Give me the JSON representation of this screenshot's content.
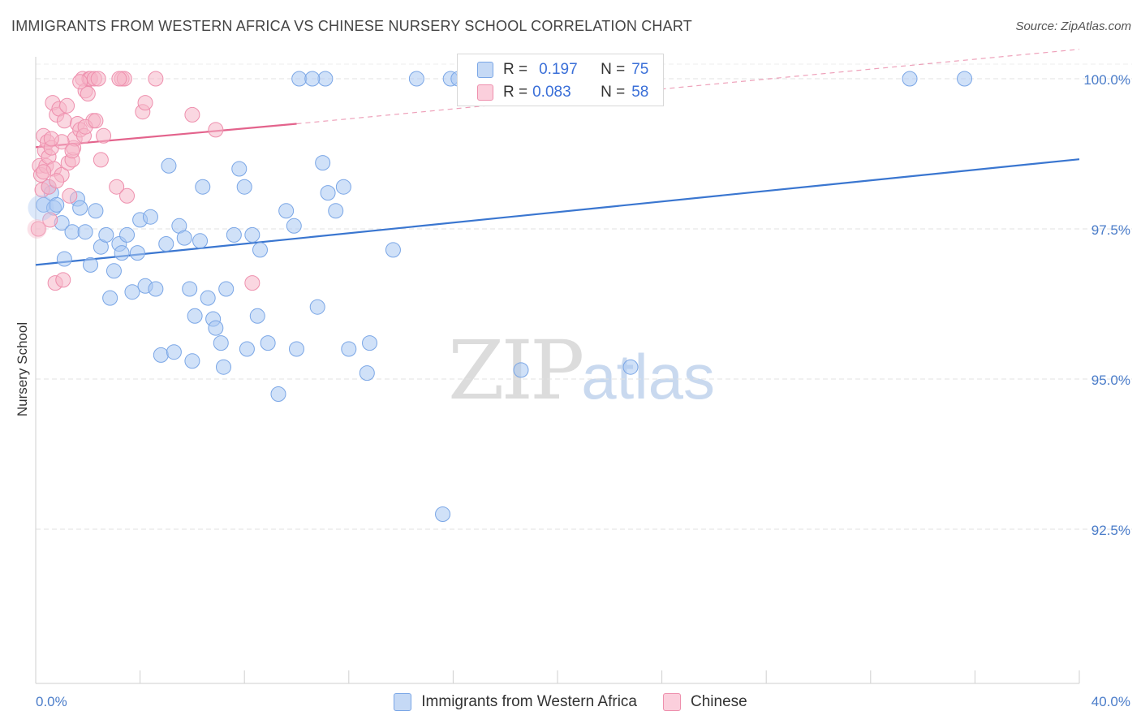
{
  "title": "IMMIGRANTS FROM WESTERN AFRICA VS CHINESE NURSERY SCHOOL CORRELATION CHART",
  "source": "Source: ZipAtlas.com",
  "watermark": {
    "zip": "ZIP",
    "atlas": "atlas"
  },
  "legend": [
    {
      "r_label": "R =",
      "r_value": "0.197",
      "n_label": "N =",
      "n_value": "75",
      "color": "#a9c8f2"
    },
    {
      "r_label": "R =",
      "r_value": "0.083",
      "n_label": "N =",
      "n_value": "58",
      "color": "#f6b6c9"
    }
  ],
  "chart_data": {
    "type": "scatter",
    "title": "IMMIGRANTS FROM WESTERN AFRICA VS CHINESE NURSERY SCHOOL CORRELATION CHART",
    "xlabel": "",
    "ylabel": "Nursery School",
    "xlim": [
      0,
      40
    ],
    "ylim": [
      90.0,
      100.45
    ],
    "x_tick_labels": [
      "0.0%",
      "40.0%"
    ],
    "y_ticks": [
      92.5,
      95.0,
      97.5,
      100.0
    ],
    "y_tick_labels": [
      "92.5%",
      "95.0%",
      "97.5%",
      "100.0%"
    ],
    "grid": true,
    "series": [
      {
        "name": "Immigrants from Western Africa",
        "color": "#a9c8f2",
        "stroke": "#7aa6e6",
        "trend": {
          "x": [
            0,
            40
          ],
          "y": [
            96.9,
            98.66
          ],
          "color": "#3a76d0"
        },
        "points": [
          [
            0.3,
            97.9
          ],
          [
            0.5,
            98.2
          ],
          [
            0.6,
            98.1
          ],
          [
            0.7,
            97.85
          ],
          [
            0.8,
            97.9
          ],
          [
            1.0,
            97.6
          ],
          [
            1.1,
            97.0
          ],
          [
            1.4,
            97.45
          ],
          [
            1.6,
            98.0
          ],
          [
            1.7,
            97.85
          ],
          [
            1.9,
            97.45
          ],
          [
            2.1,
            96.9
          ],
          [
            2.3,
            97.8
          ],
          [
            2.5,
            97.2
          ],
          [
            2.7,
            97.4
          ],
          [
            2.85,
            96.35
          ],
          [
            3.0,
            96.8
          ],
          [
            3.2,
            97.25
          ],
          [
            3.3,
            97.1
          ],
          [
            3.5,
            97.4
          ],
          [
            3.7,
            96.45
          ],
          [
            3.9,
            97.1
          ],
          [
            4.0,
            97.65
          ],
          [
            4.2,
            96.55
          ],
          [
            4.4,
            97.7
          ],
          [
            4.6,
            96.5
          ],
          [
            4.8,
            95.4
          ],
          [
            5.0,
            97.25
          ],
          [
            5.1,
            98.55
          ],
          [
            5.3,
            95.45
          ],
          [
            5.5,
            97.55
          ],
          [
            5.7,
            97.35
          ],
          [
            5.9,
            96.5
          ],
          [
            6.1,
            96.05
          ],
          [
            6.3,
            97.3
          ],
          [
            6.4,
            98.2
          ],
          [
            6.6,
            96.35
          ],
          [
            6.8,
            96.0
          ],
          [
            6.9,
            95.85
          ],
          [
            7.1,
            95.6
          ],
          [
            7.3,
            96.5
          ],
          [
            7.6,
            97.4
          ],
          [
            7.8,
            98.5
          ],
          [
            8.0,
            98.2
          ],
          [
            8.1,
            95.5
          ],
          [
            8.3,
            97.4
          ],
          [
            8.5,
            96.05
          ],
          [
            8.6,
            97.15
          ],
          [
            8.9,
            95.6
          ],
          [
            9.3,
            94.75
          ],
          [
            9.6,
            97.8
          ],
          [
            9.9,
            97.55
          ],
          [
            10.1,
            100.0
          ],
          [
            10.8,
            96.2
          ],
          [
            11.0,
            98.6
          ],
          [
            11.2,
            98.1
          ],
          [
            11.5,
            97.8
          ],
          [
            11.8,
            98.2
          ],
          [
            12.0,
            95.5
          ],
          [
            12.7,
            95.1
          ],
          [
            12.8,
            95.6
          ],
          [
            13.7,
            97.15
          ],
          [
            14.6,
            100.0
          ],
          [
            15.6,
            92.75
          ],
          [
            15.9,
            100.0
          ],
          [
            18.6,
            95.15
          ],
          [
            22.8,
            95.2
          ],
          [
            33.5,
            100.0
          ],
          [
            35.6,
            100.0
          ],
          [
            11.1,
            100.0
          ],
          [
            10.6,
            100.0
          ],
          [
            16.2,
            100.0
          ],
          [
            7.2,
            95.2
          ],
          [
            6.0,
            95.3
          ],
          [
            10.0,
            95.5
          ]
        ]
      },
      {
        "name": "Chinese",
        "color": "#f6b6c9",
        "stroke": "#ee8fad",
        "trend": {
          "x": [
            0,
            10
          ],
          "y": [
            98.86,
            99.25
          ],
          "color": "#e3638c",
          "dash_to": [
            40,
            100.49
          ]
        },
        "points": [
          [
            0.1,
            97.5
          ],
          [
            0.15,
            98.55
          ],
          [
            0.2,
            98.4
          ],
          [
            0.25,
            98.15
          ],
          [
            0.3,
            99.05
          ],
          [
            0.35,
            98.8
          ],
          [
            0.4,
            98.55
          ],
          [
            0.45,
            98.95
          ],
          [
            0.5,
            98.7
          ],
          [
            0.55,
            97.65
          ],
          [
            0.6,
            98.85
          ],
          [
            0.65,
            99.6
          ],
          [
            0.7,
            98.5
          ],
          [
            0.75,
            96.6
          ],
          [
            0.8,
            99.4
          ],
          [
            0.9,
            99.5
          ],
          [
            1.0,
            98.4
          ],
          [
            1.05,
            96.65
          ],
          [
            1.1,
            99.3
          ],
          [
            1.2,
            99.55
          ],
          [
            1.25,
            98.6
          ],
          [
            1.3,
            98.05
          ],
          [
            1.4,
            98.65
          ],
          [
            1.45,
            98.85
          ],
          [
            1.5,
            99.0
          ],
          [
            1.6,
            99.25
          ],
          [
            1.7,
            99.15
          ],
          [
            1.8,
            100.0
          ],
          [
            1.85,
            99.05
          ],
          [
            1.9,
            99.8
          ],
          [
            2.0,
            99.75
          ],
          [
            2.05,
            100.0
          ],
          [
            2.1,
            100.0
          ],
          [
            2.2,
            99.3
          ],
          [
            2.25,
            100.0
          ],
          [
            2.4,
            100.0
          ],
          [
            2.5,
            98.65
          ],
          [
            2.6,
            99.05
          ],
          [
            3.1,
            98.2
          ],
          [
            3.3,
            100.0
          ],
          [
            3.4,
            100.0
          ],
          [
            3.5,
            98.05
          ],
          [
            4.1,
            99.45
          ],
          [
            4.2,
            99.6
          ],
          [
            4.6,
            100.0
          ],
          [
            6.0,
            99.4
          ],
          [
            6.9,
            99.15
          ],
          [
            8.3,
            96.6
          ],
          [
            0.5,
            98.2
          ],
          [
            1.0,
            98.95
          ],
          [
            1.9,
            99.2
          ],
          [
            0.8,
            98.3
          ],
          [
            2.3,
            99.3
          ],
          [
            3.2,
            100.0
          ],
          [
            1.4,
            98.8
          ],
          [
            0.3,
            98.45
          ],
          [
            0.6,
            99.0
          ],
          [
            1.7,
            99.95
          ]
        ]
      }
    ]
  }
}
